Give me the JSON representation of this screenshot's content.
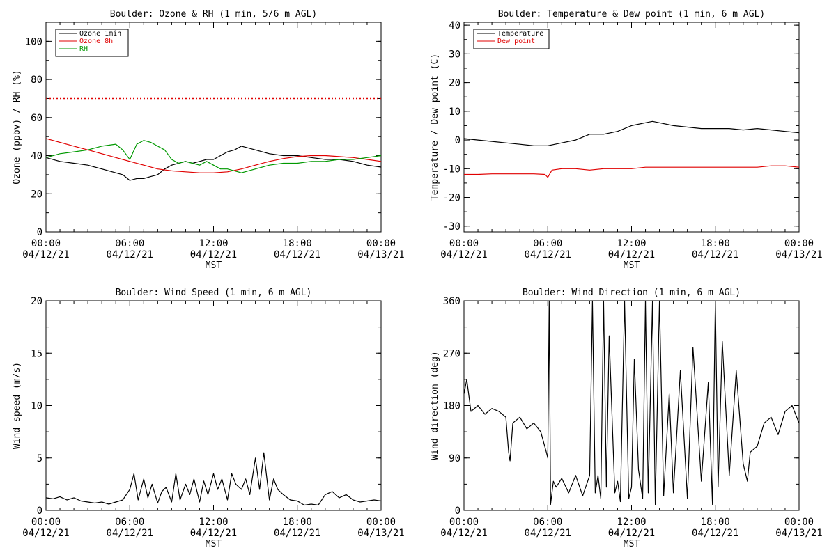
{
  "chart_data": [
    {
      "type": "line",
      "title": "Boulder: Ozone & RH (1 min, 5/6 m AGL)",
      "xlabel": "MST",
      "ylabel": "Ozone (ppbv) / RH (%)",
      "xlim": [
        0,
        24
      ],
      "ylim": [
        0,
        110
      ],
      "yticks": [
        0,
        20,
        40,
        60,
        80,
        100
      ],
      "xticks": [
        {
          "time": "00:00",
          "date": "04/12/21"
        },
        {
          "time": "06:00",
          "date": "04/12/21"
        },
        {
          "time": "12:00",
          "date": "04/12/21"
        },
        {
          "time": "18:00",
          "date": "04/12/21"
        },
        {
          "time": "00:00",
          "date": "04/13/21"
        }
      ],
      "legend": "top-left",
      "reference_lines": [
        {
          "y": 70,
          "color": "#e00000",
          "style": "dotted"
        }
      ],
      "series": [
        {
          "name": "Ozone 1min",
          "color": "#000000",
          "x": [
            0,
            1,
            2,
            3,
            4,
            5,
            5.5,
            6,
            6.5,
            7,
            7.5,
            8,
            8.5,
            9,
            9.5,
            10,
            10.5,
            11,
            11.5,
            12,
            12.5,
            13,
            13.5,
            14,
            14.5,
            15,
            15.5,
            16,
            17,
            18,
            19,
            20,
            21,
            22,
            23,
            24
          ],
          "y": [
            39,
            37,
            36,
            35,
            33,
            31,
            30,
            27,
            28,
            28,
            29,
            30,
            33,
            35,
            36,
            37,
            36,
            37,
            38,
            38,
            40,
            42,
            43,
            45,
            44,
            43,
            42,
            41,
            40,
            40,
            39,
            38,
            38,
            37,
            35,
            34
          ]
        },
        {
          "name": "Ozone 8h",
          "color": "#e00000",
          "x": [
            0,
            1,
            2,
            3,
            4,
            5,
            6,
            7,
            8,
            9,
            10,
            11,
            12,
            13,
            14,
            15,
            16,
            17,
            18,
            19,
            20,
            21,
            22,
            23,
            24
          ],
          "y": [
            49,
            47,
            45,
            43,
            41,
            39,
            37,
            35,
            33,
            32,
            31.5,
            31,
            31,
            31.5,
            33,
            35,
            37,
            38.5,
            39.5,
            40,
            40,
            39.5,
            39,
            38,
            37
          ]
        },
        {
          "name": "RH",
          "color": "#009900",
          "x": [
            0,
            1,
            2,
            3,
            4,
            5,
            5.5,
            6,
            6.5,
            7,
            7.5,
            8,
            8.5,
            9,
            9.5,
            10,
            10.5,
            11,
            11.5,
            12,
            12.5,
            13,
            14,
            15,
            16,
            17,
            18,
            19,
            20,
            21,
            22,
            23,
            24
          ],
          "y": [
            39,
            41,
            42,
            43,
            45,
            46,
            43,
            38,
            46,
            48,
            47,
            45,
            43,
            38,
            36,
            37,
            36,
            35,
            37,
            35,
            33,
            33,
            31,
            33,
            35,
            36,
            36,
            37,
            37,
            38,
            38,
            39,
            40
          ]
        }
      ]
    },
    {
      "type": "line",
      "title": "Boulder: Temperature & Dew point (1 min, 6 m AGL)",
      "xlabel": "MST",
      "ylabel": "Temperature / Dew point (C)",
      "xlim": [
        0,
        24
      ],
      "ylim": [
        -32,
        41
      ],
      "yticks": [
        -30,
        -20,
        -10,
        0,
        10,
        20,
        30,
        40
      ],
      "xticks": [
        {
          "time": "00:00",
          "date": "04/12/21"
        },
        {
          "time": "06:00",
          "date": "04/12/21"
        },
        {
          "time": "12:00",
          "date": "04/12/21"
        },
        {
          "time": "18:00",
          "date": "04/12/21"
        },
        {
          "time": "00:00",
          "date": "04/13/21"
        }
      ],
      "legend": "top-left",
      "series": [
        {
          "name": "Temperature",
          "color": "#000000",
          "x": [
            0,
            1,
            2,
            3,
            4,
            5,
            5.5,
            6,
            7,
            8,
            9,
            10,
            11,
            12,
            13,
            13.5,
            14,
            15,
            16,
            17,
            18,
            19,
            20,
            21,
            22,
            23,
            24
          ],
          "y": [
            0.5,
            0,
            -0.5,
            -1,
            -1.5,
            -2,
            -2,
            -2,
            -1,
            0,
            2,
            2,
            3,
            5,
            6,
            6.5,
            6,
            5,
            4.5,
            4,
            4,
            4,
            3.5,
            4,
            3.5,
            3,
            2.5
          ]
        },
        {
          "name": "Dew point",
          "color": "#e00000",
          "x": [
            0,
            1,
            2,
            3,
            4,
            5,
            5.8,
            6,
            6.3,
            7,
            8,
            9,
            10,
            11,
            12,
            13,
            14,
            15,
            16,
            17,
            18,
            19,
            20,
            21,
            22,
            23,
            24
          ],
          "y": [
            -12,
            -12,
            -11.8,
            -11.8,
            -11.8,
            -11.8,
            -12,
            -13,
            -10.5,
            -10,
            -10,
            -10.5,
            -10,
            -10,
            -10,
            -9.5,
            -9.5,
            -9.5,
            -9.5,
            -9.5,
            -9.5,
            -9.5,
            -9.5,
            -9.5,
            -9,
            -9,
            -9.5
          ]
        }
      ]
    },
    {
      "type": "line",
      "title": "Boulder: Wind Speed (1 min, 6 m AGL)",
      "xlabel": "MST",
      "ylabel": "Wind speed (m/s)",
      "xlim": [
        0,
        24
      ],
      "ylim": [
        0,
        20
      ],
      "yticks": [
        0,
        5,
        10,
        15,
        20
      ],
      "xticks": [
        {
          "time": "00:00",
          "date": "04/12/21"
        },
        {
          "time": "06:00",
          "date": "04/12/21"
        },
        {
          "time": "12:00",
          "date": "04/12/21"
        },
        {
          "time": "18:00",
          "date": "04/12/21"
        },
        {
          "time": "00:00",
          "date": "04/13/21"
        }
      ],
      "series": [
        {
          "color": "#000000",
          "x": [
            0,
            0.5,
            1,
            1.5,
            2,
            2.5,
            3,
            3.5,
            4,
            4.5,
            5,
            5.5,
            6,
            6.3,
            6.6,
            7,
            7.3,
            7.6,
            8,
            8.3,
            8.6,
            9,
            9.3,
            9.6,
            10,
            10.3,
            10.6,
            11,
            11.3,
            11.6,
            12,
            12.3,
            12.6,
            13,
            13.3,
            13.6,
            14,
            14.3,
            14.6,
            15,
            15.3,
            15.6,
            16,
            16.3,
            16.6,
            17,
            17.5,
            18,
            18.5,
            19,
            19.5,
            20,
            20.5,
            21,
            21.5,
            22,
            22.5,
            23,
            23.5,
            24
          ],
          "y": [
            1.2,
            1.1,
            1.3,
            1.0,
            1.2,
            0.9,
            0.8,
            0.7,
            0.8,
            0.6,
            0.8,
            1.0,
            2.0,
            3.5,
            1.0,
            3.0,
            1.2,
            2.5,
            0.7,
            1.8,
            2.2,
            0.8,
            3.5,
            1.0,
            2.5,
            1.5,
            3.0,
            0.8,
            2.8,
            1.5,
            3.5,
            2.0,
            3.0,
            1.0,
            3.5,
            2.5,
            2.0,
            3.0,
            1.5,
            5.0,
            2.0,
            5.5,
            1.0,
            3.0,
            2.0,
            1.5,
            1.0,
            0.9,
            0.5,
            0.6,
            0.5,
            1.5,
            1.8,
            1.2,
            1.5,
            1.0,
            0.8,
            0.9,
            1.0,
            0.9
          ]
        }
      ]
    },
    {
      "type": "line",
      "title": "Boulder: Wind Direction (1 min, 6 m AGL)",
      "xlabel": "MST",
      "ylabel": "Wind direction (deg)",
      "xlim": [
        0,
        24
      ],
      "ylim": [
        0,
        360
      ],
      "yticks": [
        0,
        90,
        180,
        270,
        360
      ],
      "xticks": [
        {
          "time": "00:00",
          "date": "04/12/21"
        },
        {
          "time": "06:00",
          "date": "04/12/21"
        },
        {
          "time": "12:00",
          "date": "04/12/21"
        },
        {
          "time": "18:00",
          "date": "04/12/21"
        },
        {
          "time": "00:00",
          "date": "04/13/21"
        }
      ],
      "series": [
        {
          "color": "#000000",
          "x": [
            0,
            0.2,
            0.5,
            1,
            1.5,
            2,
            2.5,
            3,
            3.2,
            3.3,
            3.5,
            4,
            4.5,
            5,
            5.5,
            5.9,
            6.0,
            6.1,
            6.2,
            6.4,
            6.6,
            7,
            7.5,
            8,
            8.5,
            9,
            9.2,
            9.4,
            9.6,
            9.8,
            10,
            10.2,
            10.4,
            10.8,
            11.0,
            11.2,
            11.5,
            11.8,
            12.0,
            12.2,
            12.5,
            12.8,
            13.0,
            13.2,
            13.5,
            13.7,
            14.0,
            14.3,
            14.7,
            15.0,
            15.5,
            16.0,
            16.4,
            17,
            17.5,
            17.8,
            18.0,
            18.2,
            18.5,
            19.0,
            19.5,
            20.0,
            20.3,
            20.5,
            21.0,
            21.5,
            22,
            22.5,
            23,
            23.5,
            24
          ],
          "y": [
            200,
            225,
            170,
            180,
            165,
            175,
            170,
            160,
            100,
            85,
            150,
            160,
            140,
            150,
            135,
            100,
            90,
            360,
            10,
            50,
            40,
            55,
            30,
            60,
            25,
            60,
            360,
            30,
            60,
            20,
            360,
            40,
            300,
            30,
            50,
            15,
            360,
            20,
            40,
            260,
            70,
            20,
            360,
            30,
            360,
            10,
            360,
            25,
            200,
            30,
            240,
            20,
            280,
            50,
            220,
            10,
            360,
            40,
            290,
            60,
            240,
            80,
            50,
            100,
            110,
            150,
            160,
            130,
            170,
            180,
            150
          ]
        }
      ]
    }
  ]
}
